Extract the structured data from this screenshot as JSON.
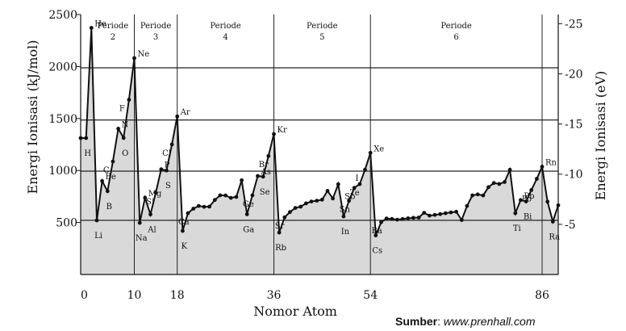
{
  "chart_data": {
    "type": "line",
    "xlabel": "Nomor Atom",
    "ylabel_left": "Energi Ionisasi (kJ/mol)",
    "ylabel_right": "Energi Ionisasi (eV)",
    "xlim": [
      0,
      89
    ],
    "ylim": [
      0,
      2500
    ],
    "x_ticks": [
      0,
      10,
      18,
      36,
      54,
      86
    ],
    "y_ticks_left": [
      500,
      1000,
      1500,
      2000,
      2500
    ],
    "y_ticks_right": [
      {
        "value": 5,
        "label": "-5"
      },
      {
        "value": 10,
        "label": "-10"
      },
      {
        "value": 15,
        "label": "-15"
      },
      {
        "value": 20,
        "label": "-20"
      },
      {
        "value": 25,
        "label": "-25"
      }
    ],
    "eV_per_kJmol": 0.010364,
    "fill": "#d9d9d9",
    "grid_lines_ev": [
      5.4,
      10.3,
      15.4,
      20.6
    ],
    "period_dividers": [
      10,
      18,
      36,
      54,
      86
    ],
    "periods": [
      {
        "label": "Periode",
        "number": "2",
        "x": 6
      },
      {
        "label": "Periode",
        "number": "3",
        "x": 14
      },
      {
        "label": "Periode",
        "number": "4",
        "x": 27
      },
      {
        "label": "Periode",
        "number": "5",
        "x": 45
      },
      {
        "label": "Periode",
        "number": "6",
        "x": 70
      }
    ],
    "series": [
      {
        "values": [
          [
            0,
            1312
          ],
          [
            1,
            1312
          ],
          [
            2,
            2372
          ],
          [
            3,
            520
          ],
          [
            4,
            899
          ],
          [
            5,
            801
          ],
          [
            6,
            1086
          ],
          [
            7,
            1402
          ],
          [
            8,
            1314
          ],
          [
            9,
            1681
          ],
          [
            10,
            2081
          ],
          [
            11,
            496
          ],
          [
            12,
            738
          ],
          [
            13,
            578
          ],
          [
            14,
            786
          ],
          [
            15,
            1012
          ],
          [
            16,
            1000
          ],
          [
            17,
            1251
          ],
          [
            18,
            1521
          ],
          [
            19,
            419
          ],
          [
            20,
            590
          ],
          [
            21,
            633
          ],
          [
            22,
            659
          ],
          [
            23,
            651
          ],
          [
            24,
            653
          ],
          [
            25,
            717
          ],
          [
            26,
            762
          ],
          [
            27,
            760
          ],
          [
            28,
            737
          ],
          [
            29,
            746
          ],
          [
            30,
            906
          ],
          [
            31,
            579
          ],
          [
            32,
            762
          ],
          [
            33,
            947
          ],
          [
            34,
            941
          ],
          [
            35,
            1140
          ],
          [
            36,
            1351
          ],
          [
            37,
            403
          ],
          [
            38,
            550
          ],
          [
            39,
            600
          ],
          [
            40,
            640
          ],
          [
            41,
            652
          ],
          [
            42,
            684
          ],
          [
            43,
            702
          ],
          [
            44,
            710
          ],
          [
            45,
            720
          ],
          [
            46,
            804
          ],
          [
            47,
            731
          ],
          [
            48,
            868
          ],
          [
            49,
            558
          ],
          [
            50,
            709
          ],
          [
            51,
            834
          ],
          [
            52,
            869
          ],
          [
            53,
            1008
          ],
          [
            54,
            1170
          ],
          [
            55,
            376
          ],
          [
            56,
            503
          ],
          [
            57,
            538
          ],
          [
            58,
            534
          ],
          [
            59,
            527
          ],
          [
            60,
            533
          ],
          [
            61,
            540
          ],
          [
            62,
            545
          ],
          [
            63,
            547
          ],
          [
            64,
            593
          ],
          [
            65,
            566
          ],
          [
            66,
            573
          ],
          [
            67,
            581
          ],
          [
            68,
            589
          ],
          [
            69,
            597
          ],
          [
            70,
            603
          ],
          [
            71,
            524
          ],
          [
            72,
            659
          ],
          [
            73,
            761
          ],
          [
            74,
            770
          ],
          [
            75,
            760
          ],
          [
            76,
            840
          ],
          [
            77,
            880
          ],
          [
            78,
            870
          ],
          [
            79,
            890
          ],
          [
            80,
            1007
          ],
          [
            81,
            589
          ],
          [
            82,
            716
          ],
          [
            83,
            703
          ],
          [
            84,
            812
          ],
          [
            85,
            920
          ],
          [
            86,
            1037
          ],
          [
            87,
            700
          ],
          [
            88,
            509
          ],
          [
            89,
            665
          ]
        ]
      }
    ],
    "element_labels": [
      {
        "symbol": "H",
        "z": 1
      },
      {
        "symbol": "He",
        "z": 2
      },
      {
        "symbol": "Li",
        "z": 3
      },
      {
        "symbol": "Be",
        "z": 4
      },
      {
        "symbol": "B",
        "z": 5
      },
      {
        "symbol": "C",
        "z": 6
      },
      {
        "symbol": "N",
        "z": 7
      },
      {
        "symbol": "O",
        "z": 8
      },
      {
        "symbol": "F",
        "z": 9
      },
      {
        "symbol": "Ne",
        "z": 10
      },
      {
        "symbol": "Na",
        "z": 11
      },
      {
        "symbol": "Mg",
        "z": 12
      },
      {
        "symbol": "Al",
        "z": 13
      },
      {
        "symbol": "Si",
        "z": 14
      },
      {
        "symbol": "P",
        "z": 15
      },
      {
        "symbol": "S",
        "z": 16
      },
      {
        "symbol": "Cl",
        "z": 17
      },
      {
        "symbol": "Ar",
        "z": 18
      },
      {
        "symbol": "K",
        "z": 19
      },
      {
        "symbol": "Ca",
        "z": 20
      },
      {
        "symbol": "Ga",
        "z": 31
      },
      {
        "symbol": "Ge",
        "z": 32
      },
      {
        "symbol": "As",
        "z": 33
      },
      {
        "symbol": "Se",
        "z": 34
      },
      {
        "symbol": "Br",
        "z": 35
      },
      {
        "symbol": "Kr",
        "z": 36
      },
      {
        "symbol": "Rb",
        "z": 37
      },
      {
        "symbol": "Sr",
        "z": 38
      },
      {
        "symbol": "In",
        "z": 49
      },
      {
        "symbol": "Sn",
        "z": 50
      },
      {
        "symbol": "Sb",
        "z": 51
      },
      {
        "symbol": "Te",
        "z": 52
      },
      {
        "symbol": "I",
        "z": 53
      },
      {
        "symbol": "Xe",
        "z": 54
      },
      {
        "symbol": "Cs",
        "z": 55
      },
      {
        "symbol": "Ba",
        "z": 56
      },
      {
        "symbol": "Ti",
        "z": 81
      },
      {
        "symbol": "Pb",
        "z": 82
      },
      {
        "symbol": "Bi",
        "z": 83
      },
      {
        "symbol": "Po",
        "z": 84
      },
      {
        "symbol": "Rn",
        "z": 86
      },
      {
        "symbol": "Ra",
        "z": 88
      }
    ]
  },
  "source": {
    "label": "Sumber",
    "separator": ": ",
    "url": "www.prenhall.com"
  }
}
